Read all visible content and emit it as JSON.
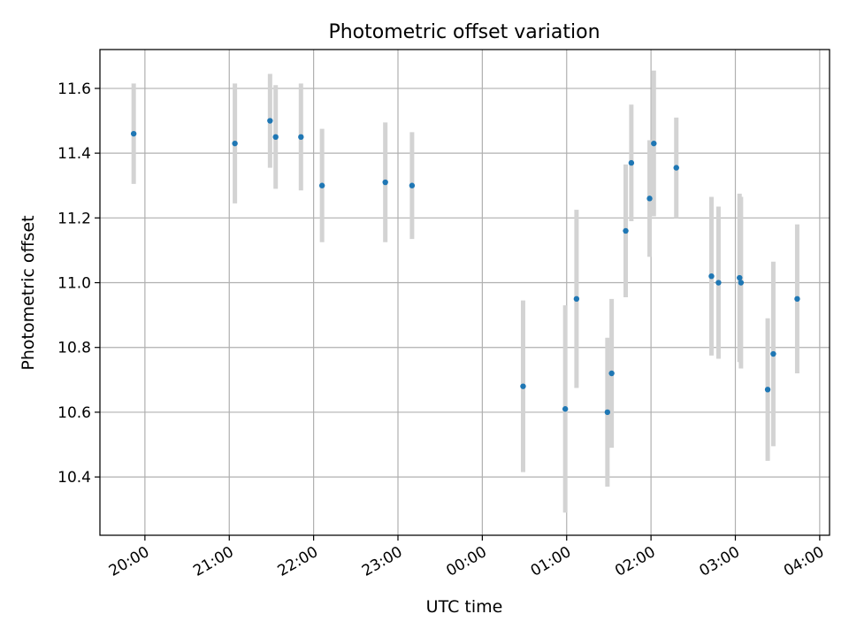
{
  "chart_data": {
    "type": "scatter",
    "title": "Photometric offset variation",
    "xlabel": "UTC time",
    "ylabel": "Photometric offset",
    "grid": true,
    "xlim": [
      "19:28",
      "04:07"
    ],
    "ylim": [
      10.22,
      11.72
    ],
    "x_ticks": [
      "20:00",
      "21:00",
      "22:00",
      "23:00",
      "00:00",
      "01:00",
      "02:00",
      "03:00",
      "04:00"
    ],
    "y_ticks": [
      "10.4",
      "10.6",
      "10.8",
      "11.0",
      "11.2",
      "11.4",
      "11.6"
    ],
    "colors": {
      "point": "#1f77b4",
      "errorbar": "#d3d3d3",
      "grid": "#b0b0b0"
    },
    "series": [
      {
        "x": [
          "19:52",
          "21:04",
          "21:29",
          "21:33",
          "21:51",
          "22:06",
          "22:51",
          "23:10",
          "00:29",
          "00:59",
          "01:07",
          "01:29",
          "01:32",
          "01:42",
          "01:46",
          "01:59",
          "02:02",
          "02:18",
          "02:43",
          "02:48",
          "03:03",
          "03:04",
          "03:23",
          "03:27",
          "03:44"
        ],
        "y": [
          11.46,
          11.43,
          11.5,
          11.45,
          11.45,
          11.3,
          11.31,
          11.3,
          10.68,
          10.61,
          10.95,
          10.6,
          10.72,
          11.16,
          11.37,
          11.26,
          11.43,
          11.355,
          11.02,
          11.0,
          11.015,
          11.0,
          10.67,
          10.78,
          10.95
        ],
        "yerr": [
          0.155,
          0.185,
          0.145,
          0.16,
          0.165,
          0.175,
          0.185,
          0.165,
          0.265,
          0.32,
          0.275,
          0.23,
          0.23,
          0.205,
          0.18,
          0.18,
          0.225,
          0.155,
          0.245,
          0.235,
          0.26,
          0.265,
          0.22,
          0.285,
          0.23
        ]
      }
    ]
  }
}
